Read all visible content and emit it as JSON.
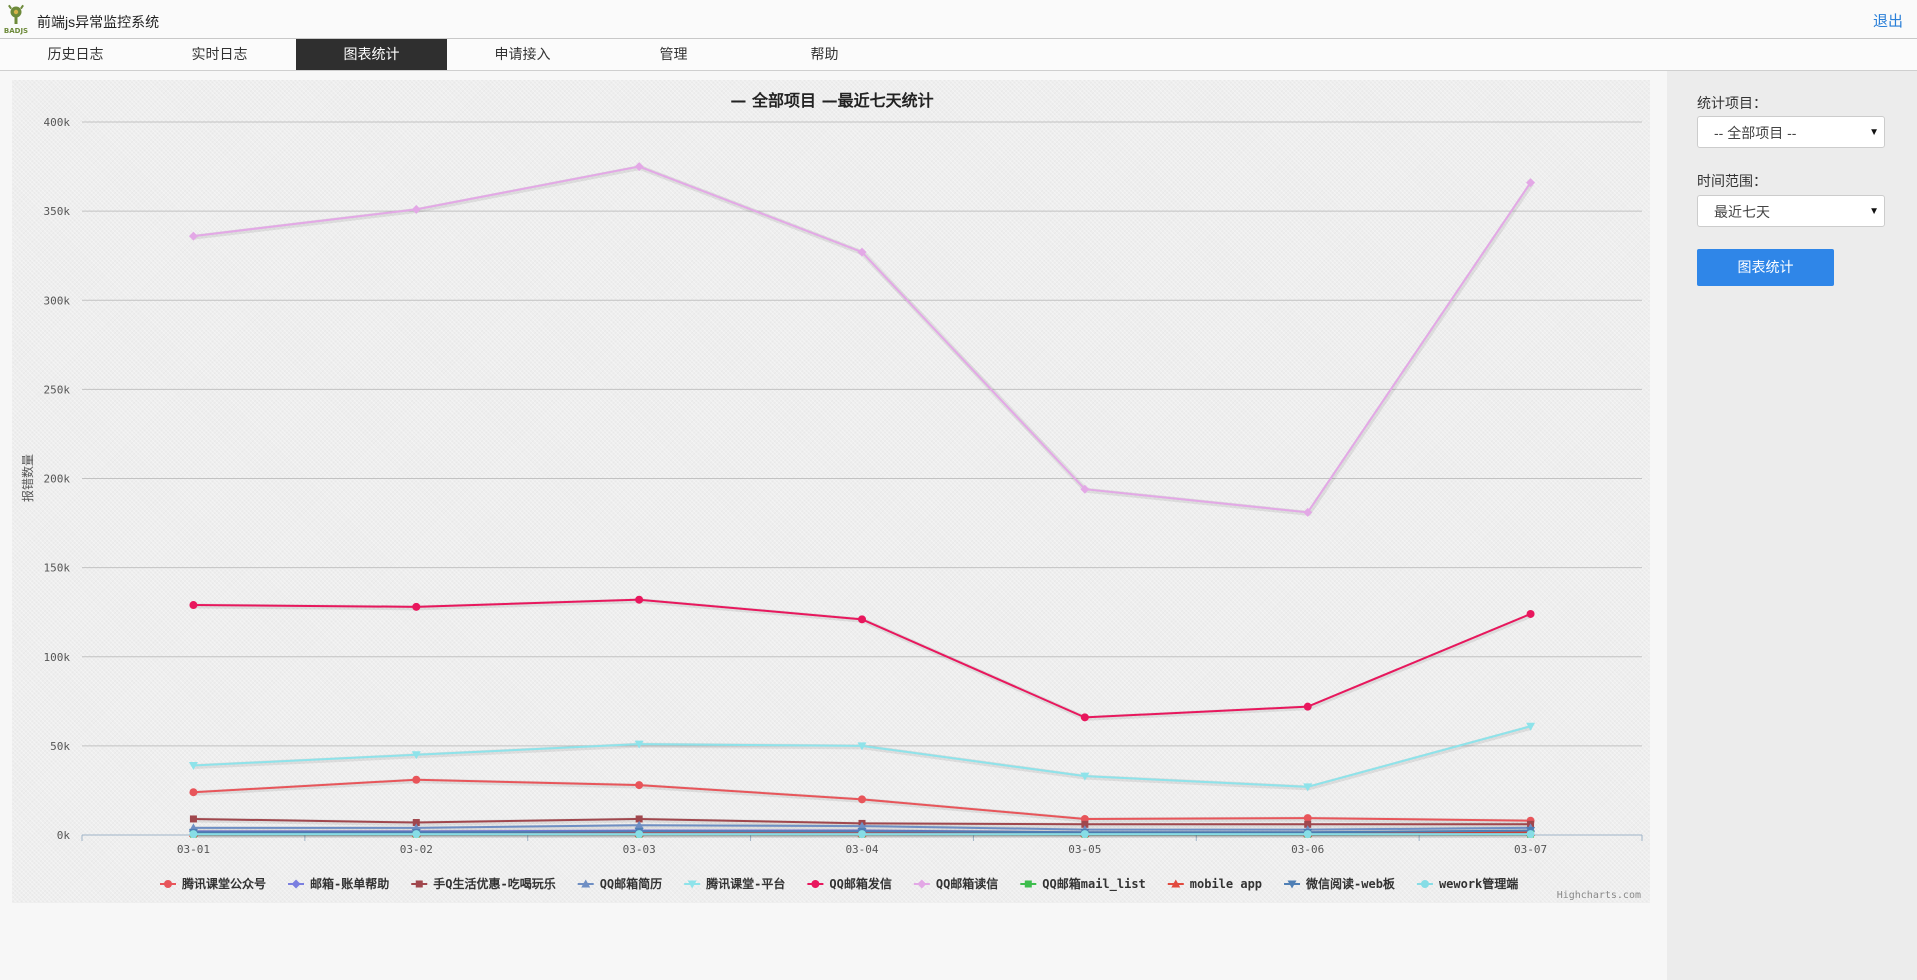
{
  "header": {
    "app_title": "前端js异常监控系统",
    "logo_text": "BADJS",
    "logout_label": "退出"
  },
  "nav": {
    "items": [
      {
        "label": "历史日志",
        "active": false
      },
      {
        "label": "实时日志",
        "active": false
      },
      {
        "label": "图表统计",
        "active": true
      },
      {
        "label": "申请接入",
        "active": false
      },
      {
        "label": "管理",
        "active": false
      },
      {
        "label": "帮助",
        "active": false
      }
    ]
  },
  "sidebar": {
    "project_label": "统计项目：",
    "project_value": "-- 全部项目 --",
    "range_label": "时间范围：",
    "range_value": "最近七天",
    "submit_label": "图表统计"
  },
  "chart_data": {
    "type": "line",
    "title": "— 全部项目 —最近七天统计",
    "ylabel": "报错数量",
    "xlabel": "",
    "credits": "Highcharts.com",
    "ylim": [
      0,
      400000
    ],
    "yticks": [
      "0k",
      "50k",
      "100k",
      "150k",
      "200k",
      "250k",
      "300k",
      "350k",
      "400k"
    ],
    "grid": true,
    "legend_position": "bottom",
    "categories": [
      "03-01",
      "03-02",
      "03-03",
      "03-04",
      "03-05",
      "03-06",
      "03-07"
    ],
    "series": [
      {
        "name": "腾讯课堂公众号",
        "color": "#e8555a",
        "marker": "circle",
        "values": [
          24000,
          31000,
          28000,
          20000,
          9000,
          9500,
          8000
        ]
      },
      {
        "name": "邮箱-账单帮助",
        "color": "#7b7fe0",
        "marker": "diamond",
        "values": [
          2000,
          2000,
          2500,
          2500,
          1500,
          1500,
          2000
        ]
      },
      {
        "name": "手Q生活优惠-吃喝玩乐",
        "color": "#a0474d",
        "marker": "square",
        "values": [
          9000,
          7000,
          9000,
          6500,
          6000,
          6000,
          6000
        ]
      },
      {
        "name": "QQ邮箱简历",
        "color": "#6f8fc4",
        "marker": "triangle",
        "values": [
          4000,
          4000,
          5500,
          5000,
          3000,
          3000,
          4000
        ]
      },
      {
        "name": "腾讯课堂-平台",
        "color": "#8ee3ea",
        "marker": "triangle-down",
        "values": [
          39000,
          45000,
          51000,
          50000,
          33000,
          27000,
          61000
        ]
      },
      {
        "name": "QQ邮箱发信",
        "color": "#e8175d",
        "marker": "circle",
        "values": [
          129000,
          128000,
          132000,
          121000,
          66000,
          72000,
          124000
        ]
      },
      {
        "name": "QQ邮箱读信",
        "color": "#e3a8e6",
        "marker": "diamond",
        "values": [
          336000,
          351000,
          375000,
          327000,
          194000,
          181000,
          366000
        ]
      },
      {
        "name": "QQ邮箱mail_list",
        "color": "#3dbd4d",
        "marker": "square",
        "values": [
          500,
          500,
          500,
          500,
          500,
          500,
          500
        ]
      },
      {
        "name": "mobile app",
        "color": "#e24a3f",
        "marker": "triangle",
        "values": [
          1000,
          1000,
          1000,
          1000,
          1000,
          1000,
          1500
        ]
      },
      {
        "name": "微信阅读-web板",
        "color": "#4f7fb5",
        "marker": "triangle-down",
        "values": [
          1500,
          1500,
          2000,
          2000,
          1500,
          1500,
          2500
        ]
      },
      {
        "name": "wework管理端",
        "color": "#86dde6",
        "marker": "circle",
        "values": [
          500,
          500,
          500,
          500,
          500,
          500,
          500
        ]
      }
    ]
  }
}
